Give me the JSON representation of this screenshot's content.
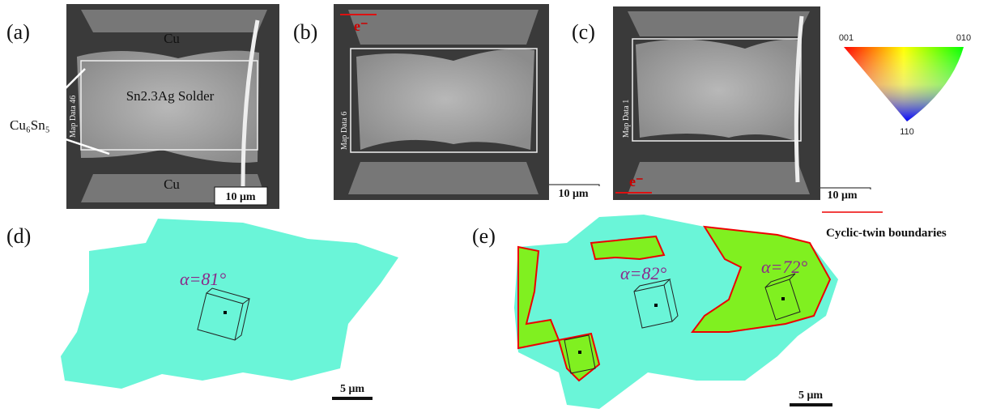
{
  "panels": [
    {
      "label": "(a)",
      "top_phase": "Cu",
      "bottom_phase": "Cu",
      "solder": "Sn2.3Ag Solder",
      "imc": "Cu₆Sn₅",
      "map": "Map Data 46",
      "scale": "10 μm"
    },
    {
      "label": "(b)",
      "electron": "e⁻",
      "map": "Map Data 6",
      "scale": "10 μm"
    },
    {
      "label": "(c)",
      "electron": "e⁻",
      "map": "Map Data 1",
      "scale": "10 μm"
    },
    {
      "label": "(d)",
      "angle": "α=81°",
      "scale": "5 μm"
    },
    {
      "label": "(e)",
      "angles": [
        "α=82°",
        "α=72°"
      ],
      "scale": "5 μm"
    }
  ],
  "legend": {
    "corner_001": "001",
    "corner_010": "010",
    "corner_110": "110",
    "boundary": "Cyclic-twin boundaries"
  }
}
